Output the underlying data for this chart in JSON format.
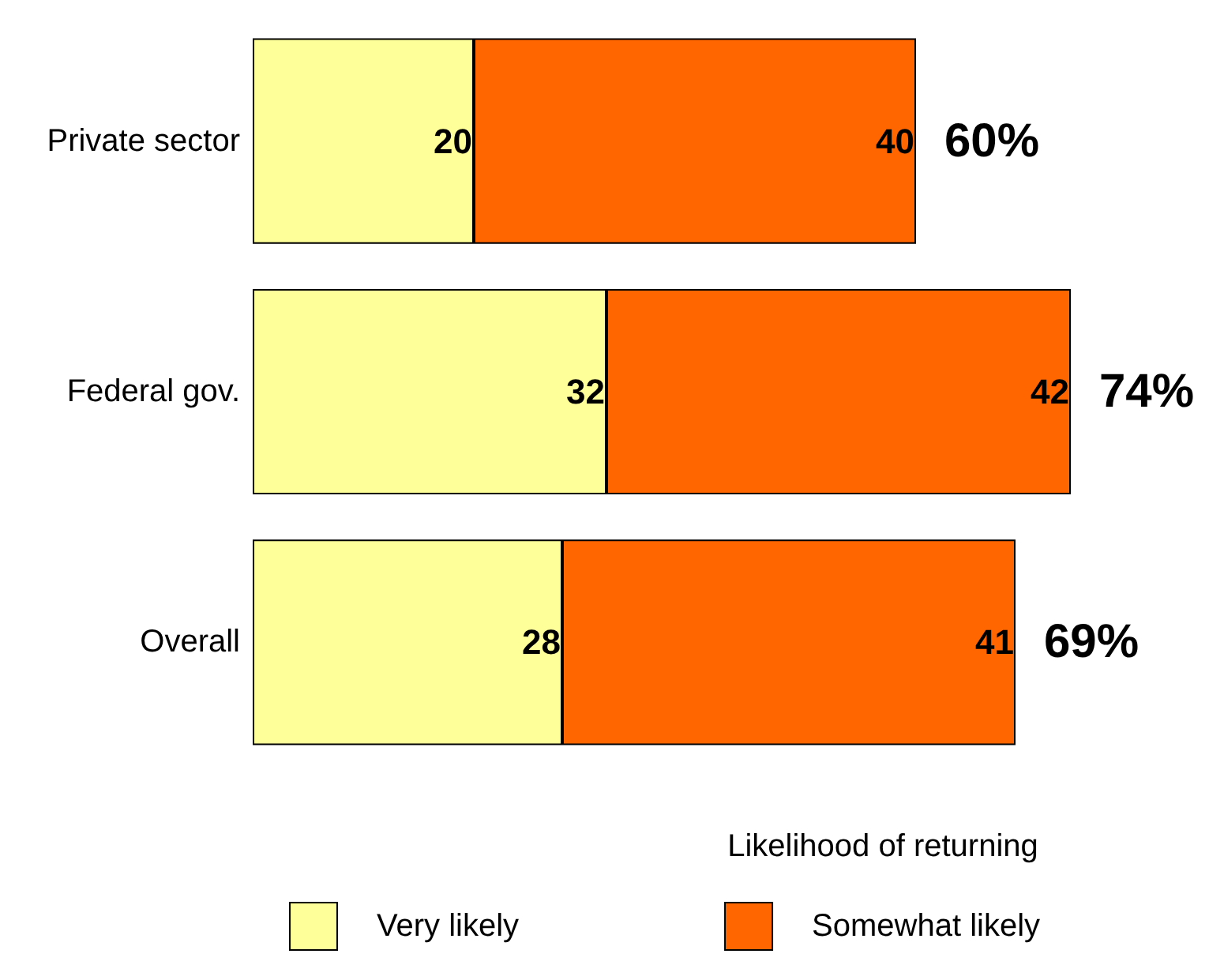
{
  "chart_data": {
    "type": "bar",
    "orientation": "horizontal",
    "stacked": true,
    "categories": [
      "Private sector",
      "Federal gov.",
      "Overall"
    ],
    "series": [
      {
        "name": "Very likely",
        "color": "#ffff99",
        "values": [
          20,
          32,
          28
        ]
      },
      {
        "name": "Somewhat likely",
        "color": "#ff6600",
        "values": [
          40,
          42,
          41
        ]
      }
    ],
    "data_labels": true,
    "totals": [
      "60%",
      "74%",
      "69%"
    ],
    "xlabel": "Likelihood of returning",
    "legend": "bottom"
  }
}
